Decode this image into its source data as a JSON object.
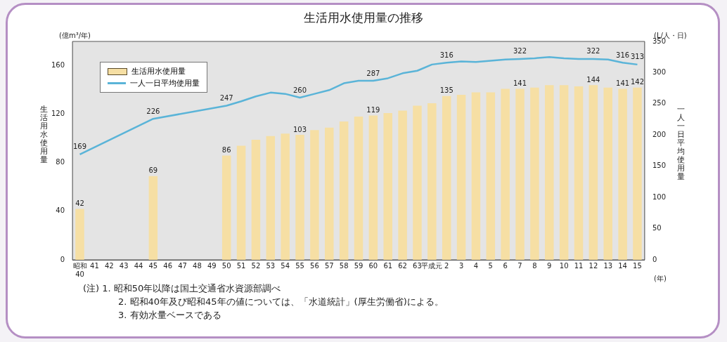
{
  "chart_data": {
    "type": "bar",
    "title": "生活用水使用量の推移",
    "ylabel": "生活用水使用量",
    "y2label": "一人一日平均使用量",
    "categories": [
      "昭和40",
      "41",
      "42",
      "43",
      "44",
      "45",
      "46",
      "47",
      "48",
      "49",
      "50",
      "51",
      "52",
      "53",
      "54",
      "55",
      "56",
      "57",
      "58",
      "59",
      "60",
      "61",
      "62",
      "63",
      "平成元",
      "2",
      "3",
      "4",
      "5",
      "6",
      "7",
      "8",
      "9",
      "10",
      "11",
      "12",
      "13",
      "14",
      "15"
    ],
    "series": [
      {
        "name": "生活用水使用量",
        "type": "bar",
        "color": "#f6dfa4",
        "values": [
          42,
          null,
          null,
          null,
          null,
          69,
          null,
          null,
          null,
          null,
          86,
          94,
          99,
          102,
          104,
          103,
          107,
          109,
          114,
          118,
          119,
          121,
          123,
          127,
          129,
          135,
          136,
          138,
          138,
          141,
          141,
          142,
          144,
          144,
          143,
          144,
          142,
          141,
          142
        ],
        "value_labels": [
          "42",
          null,
          null,
          null,
          null,
          "69",
          null,
          null,
          null,
          null,
          "86",
          null,
          null,
          null,
          null,
          "103",
          null,
          null,
          null,
          null,
          "119",
          null,
          null,
          null,
          null,
          "135",
          null,
          null,
          null,
          null,
          "141",
          null,
          null,
          null,
          null,
          "144",
          null,
          "141",
          "142"
        ]
      },
      {
        "name": "一人一日平均使用量",
        "type": "line",
        "axis": "y2",
        "color": "#5ab4d8",
        "values": [
          169,
          null,
          null,
          null,
          null,
          226,
          null,
          null,
          null,
          null,
          247,
          254,
          262,
          268,
          266,
          260,
          266,
          272,
          283,
          287,
          287,
          291,
          299,
          303,
          313,
          316,
          318,
          317,
          319,
          321,
          322,
          323,
          325,
          323,
          322,
          322,
          321,
          316,
          313
        ],
        "value_labels": [
          "169",
          null,
          null,
          null,
          null,
          "226",
          null,
          null,
          null,
          null,
          "247",
          null,
          null,
          null,
          null,
          "260",
          null,
          null,
          null,
          null,
          "287",
          null,
          null,
          null,
          null,
          "316",
          null,
          null,
          null,
          null,
          "322",
          null,
          null,
          null,
          null,
          "322",
          null,
          "316",
          "313"
        ]
      }
    ],
    "ylim": [
      0,
      180
    ],
    "yticks": [
      0,
      40,
      80,
      120,
      160
    ],
    "y2lim": [
      0,
      350
    ],
    "y2ticks": [
      0,
      50,
      100,
      150,
      200,
      250,
      300,
      350
    ],
    "legend": "top left",
    "grid": false,
    "marker": "none",
    "line_style": "solid",
    "annotations": [
      "(億m³/年)",
      "(L/人・日)",
      "(年)",
      "(注) 1. 昭和50年以降は国土交通省水資源部調べ",
      "2. 昭和40年及び昭和45年の値については、「水道統計」(厚生労働省)による。",
      "3. 有効水量ベースである"
    ]
  }
}
